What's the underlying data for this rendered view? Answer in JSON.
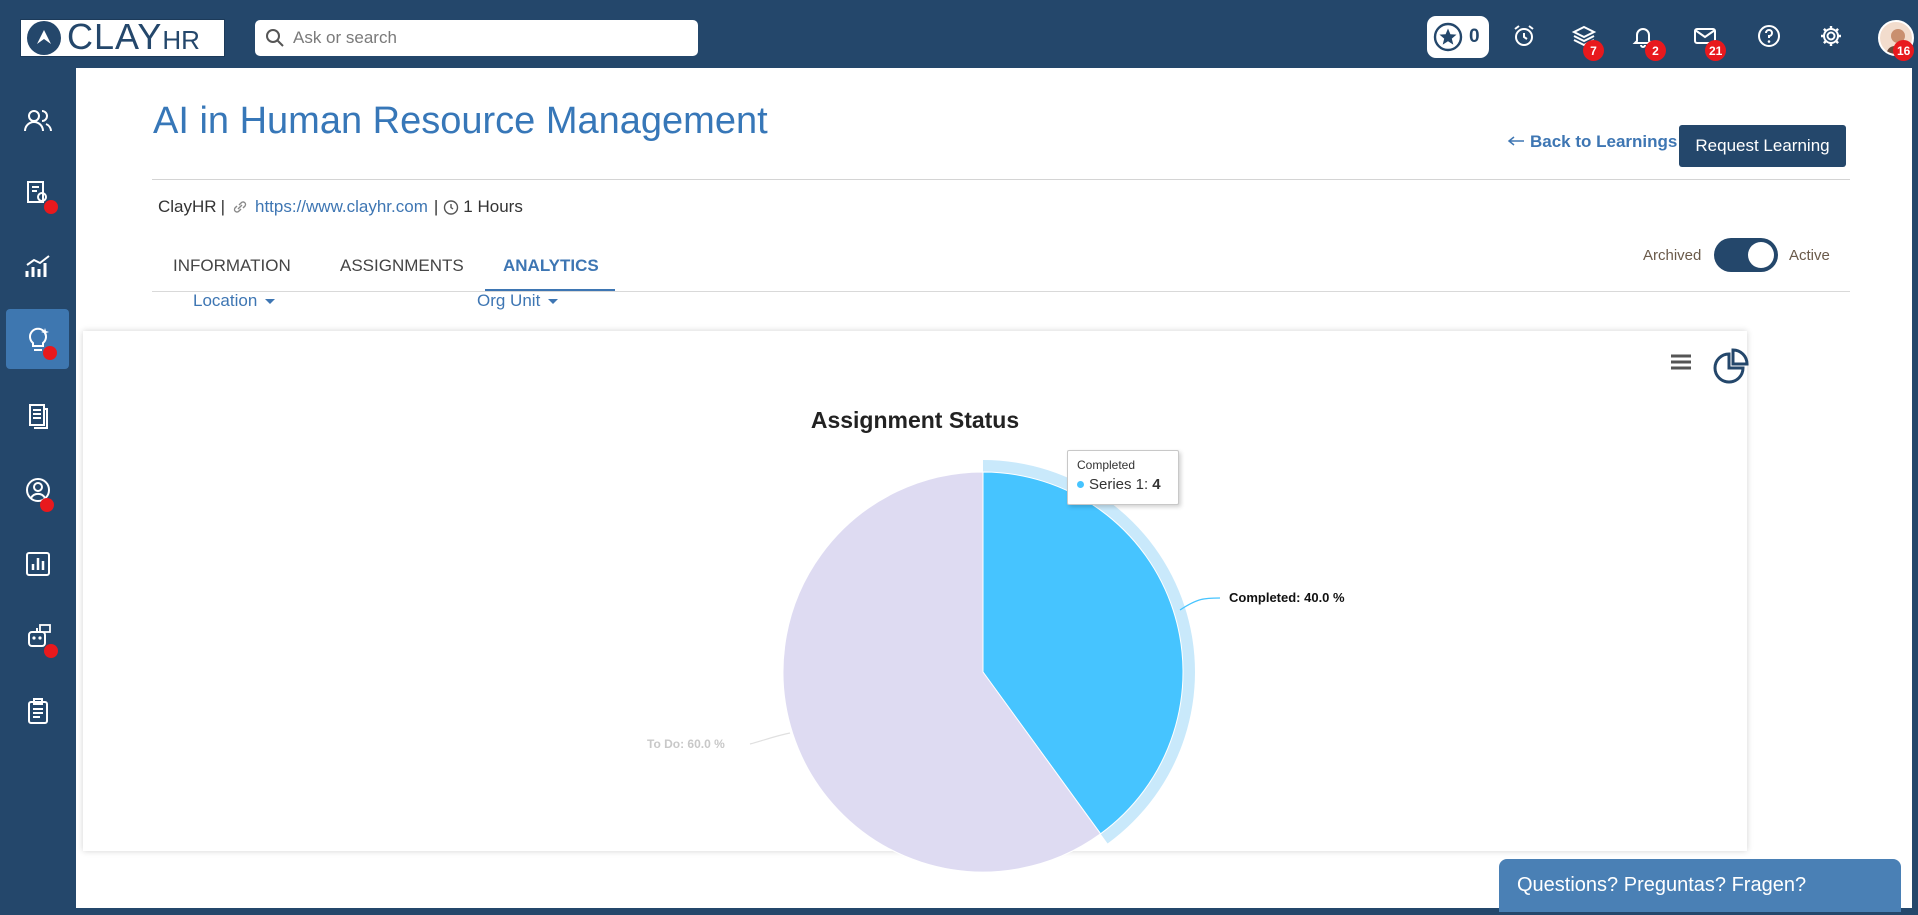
{
  "brand": {
    "name": "CLAY",
    "suffix": "HR"
  },
  "search": {
    "placeholder": "Ask or search"
  },
  "header": {
    "stars": "0",
    "icons": [
      {
        "name": "alarm-clock-icon",
        "badge": ""
      },
      {
        "name": "layers-icon",
        "badge": "7"
      },
      {
        "name": "bell-icon",
        "badge": "2"
      },
      {
        "name": "mail-icon",
        "badge": "21"
      },
      {
        "name": "help-icon",
        "badge": ""
      },
      {
        "name": "gear-icon",
        "badge": ""
      }
    ],
    "avatar_badge": "16"
  },
  "sidebar": {
    "items": [
      {
        "name": "people-icon",
        "dot": false,
        "active": false
      },
      {
        "name": "document-search-icon",
        "dot": true,
        "active": false
      },
      {
        "name": "growth-chart-icon",
        "dot": false,
        "active": false
      },
      {
        "name": "lightbulb-icon",
        "dot": true,
        "active": true
      },
      {
        "name": "files-icon",
        "dot": false,
        "active": false
      },
      {
        "name": "user-circle-icon",
        "dot": true,
        "active": false
      },
      {
        "name": "bar-chart-icon",
        "dot": false,
        "active": false
      },
      {
        "name": "robot-icon",
        "dot": true,
        "active": false
      },
      {
        "name": "clipboard-icon",
        "dot": false,
        "active": false
      }
    ]
  },
  "page": {
    "title": "AI in Human Resource Management",
    "back_label": "Back to Learnings",
    "request_label": "Request Learning",
    "provider": "ClayHR",
    "separator": "|",
    "url": "https://www.clayhr.com",
    "duration": "1 Hours"
  },
  "tabs": [
    {
      "label": "INFORMATION",
      "active": false
    },
    {
      "label": "ASSIGNMENTS",
      "active": false
    },
    {
      "label": "ANALYTICS",
      "active": true
    }
  ],
  "toggle": {
    "off_label": "Archived",
    "on_label": "Active",
    "state": "on"
  },
  "filters": {
    "location": "Location",
    "org_unit": "Org Unit"
  },
  "colors": {
    "completed": "#46c4ff",
    "todo": "#dedbf2",
    "hover_halo": "#c9e9fb",
    "brand": "#24476b"
  },
  "chart_data": {
    "type": "pie",
    "title": "Assignment Status",
    "series": [
      {
        "name": "Series 1",
        "points": [
          {
            "label": "Completed",
            "value": 4,
            "percent_label": "Completed: 40.0 %"
          },
          {
            "label": "To Do",
            "value": 6,
            "percent_label": "To Do: 60.0 %"
          }
        ]
      }
    ],
    "tooltip": {
      "category": "Completed",
      "series": "Series 1",
      "value": "4"
    }
  },
  "help": {
    "label": "Questions? Preguntas? Fragen?"
  }
}
